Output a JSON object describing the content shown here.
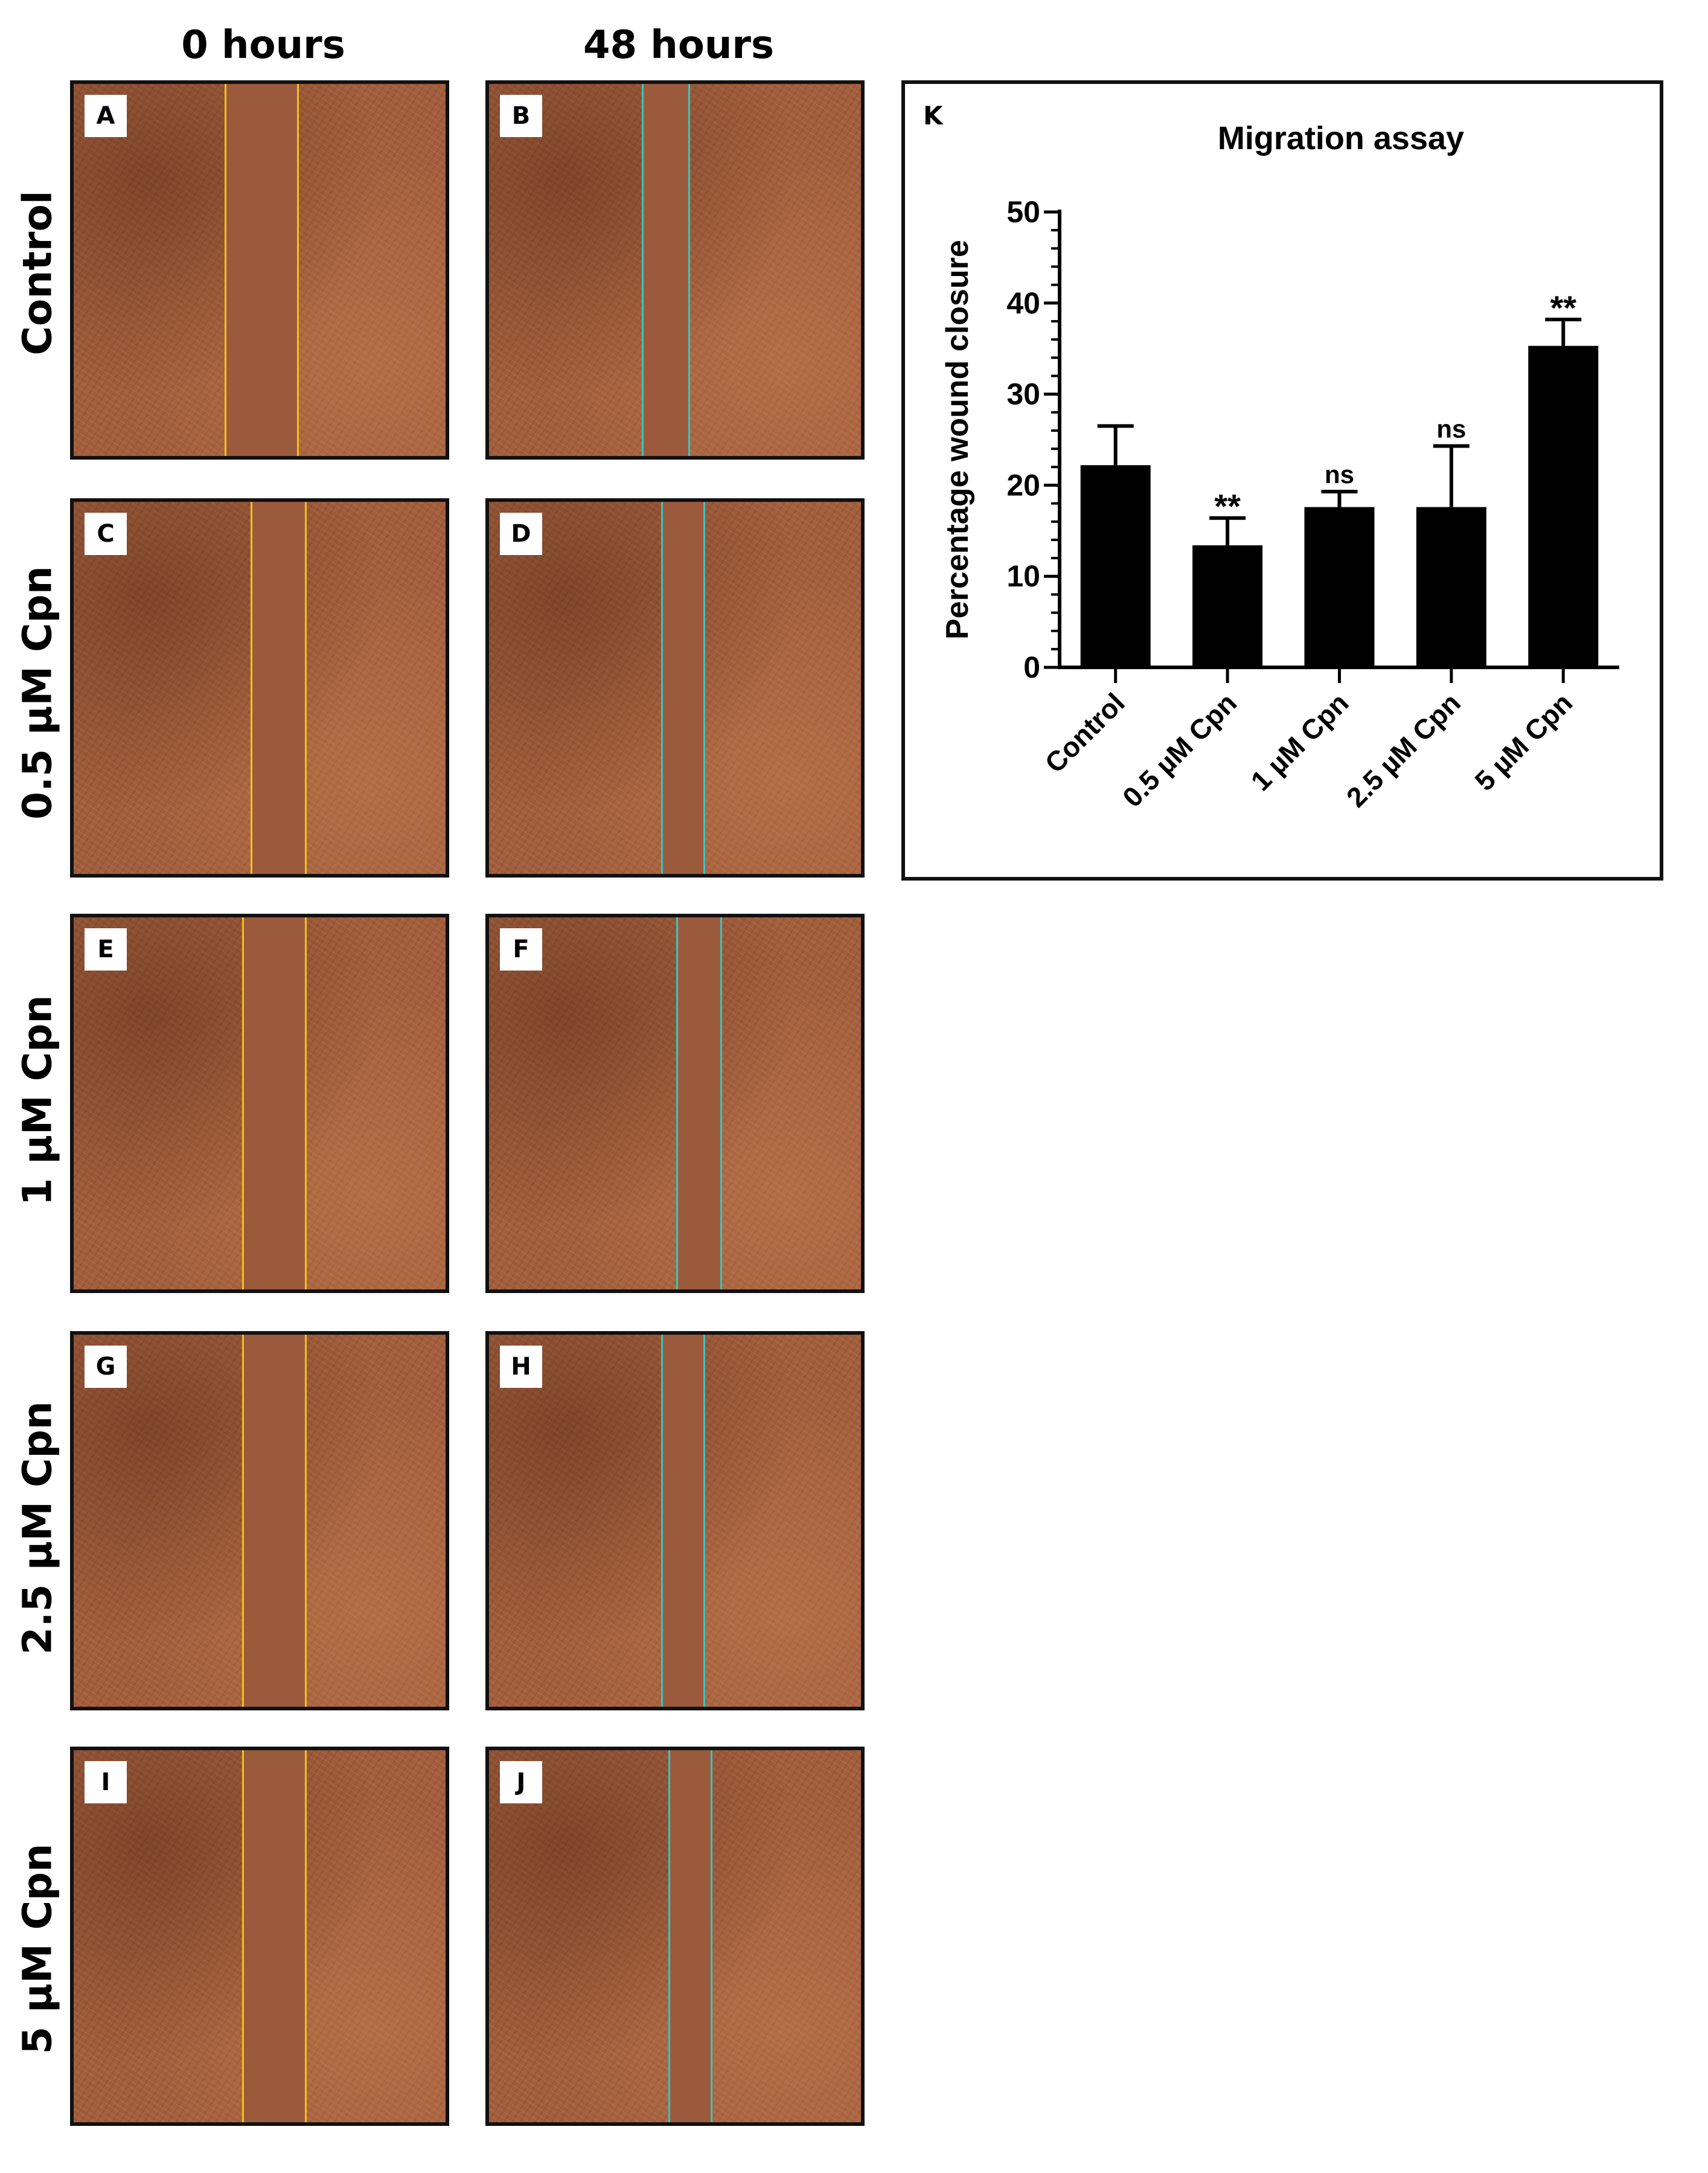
{
  "column_headers": [
    "0 hours",
    "48 hours"
  ],
  "row_labels": [
    "Control",
    "0.5 µM Cpn",
    "1 µM Cpn",
    "2.5 µM Cpn",
    "5 µM Cpn"
  ],
  "panel_letters": [
    "A",
    "B",
    "C",
    "D",
    "E",
    "F",
    "G",
    "H",
    "I",
    "J"
  ],
  "line_colors": {
    "hours_0": "#f2c21a",
    "hours_48": "#35c6c2"
  },
  "chart_panel_letter": "K",
  "chart_data": {
    "type": "bar",
    "title": "Migration assay",
    "xlabel": "",
    "ylabel": "Percentage wound closure",
    "categories": [
      "Control",
      "0.5 µM Cpn",
      "1 µM Cpn",
      "2.5 µM Cpn",
      "5 µM Cpn"
    ],
    "values": [
      22.2,
      13.4,
      17.6,
      17.6,
      35.3
    ],
    "error_bars": [
      4.3,
      3.0,
      1.7,
      6.7,
      2.9
    ],
    "significance": [
      "",
      "**",
      "ns",
      "ns",
      "**"
    ],
    "ylim": [
      0,
      50
    ],
    "yticks": [
      0,
      10,
      20,
      30,
      40,
      50
    ],
    "bar_color": "#000000",
    "grid": false
  }
}
